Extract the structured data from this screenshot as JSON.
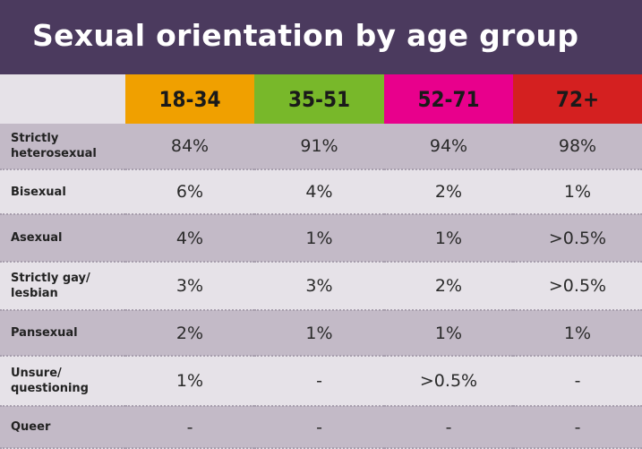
{
  "chart_data": {
    "type": "table",
    "title": "Sexual orientation by age group",
    "columns": [
      {
        "label": "18-34",
        "color": "#f0a000"
      },
      {
        "label": "35-51",
        "color": "#78b82a"
      },
      {
        "label": "52-71",
        "color": "#e8008c"
      },
      {
        "label": "72+",
        "color": "#d42020"
      }
    ],
    "rows": [
      {
        "label": "Strictly heterosexual",
        "values": [
          "84%",
          "91%",
          "94%",
          "98%"
        ]
      },
      {
        "label": "Bisexual",
        "values": [
          "6%",
          "4%",
          "2%",
          "1%"
        ]
      },
      {
        "label": "Asexual",
        "values": [
          "4%",
          "1%",
          "1%",
          ">0.5%"
        ]
      },
      {
        "label": "Strictly gay/ lesbian",
        "values": [
          "3%",
          "3%",
          "2%",
          ">0.5%"
        ]
      },
      {
        "label": "Pansexual",
        "values": [
          "2%",
          "1%",
          "1%",
          "1%"
        ]
      },
      {
        "label": "Unsure/ questioning",
        "values": [
          "1%",
          "-",
          ">0.5%",
          "-"
        ]
      },
      {
        "label": "Queer",
        "values": [
          "-",
          "-",
          "-",
          "-"
        ]
      }
    ],
    "colors": {
      "title_bar": "#4b3a5e",
      "row_dark": "#c3bac7",
      "row_light": "#e6e2e8"
    }
  }
}
